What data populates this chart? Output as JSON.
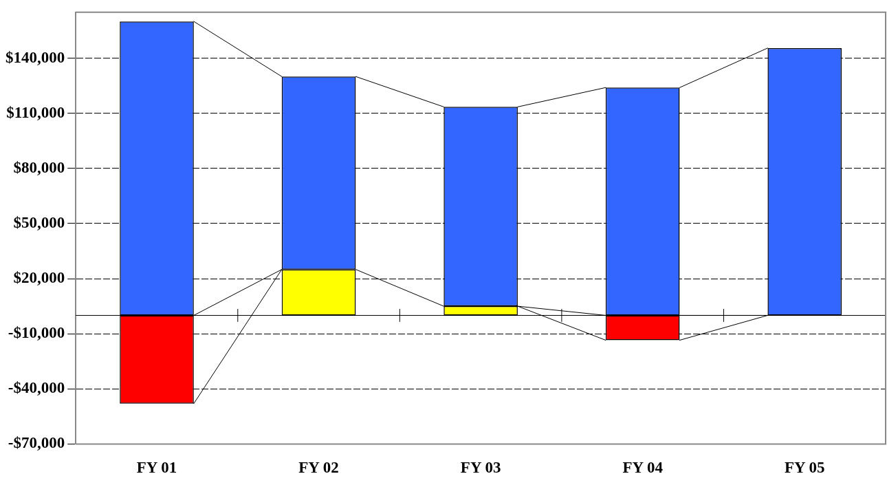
{
  "chart_data": {
    "type": "bar",
    "stacked": true,
    "categories": [
      "FY 01",
      "FY 02",
      "FY 03",
      "FY 04",
      "FY 05"
    ],
    "series": [
      {
        "colors": [
          "#ff0000",
          "#ffff00",
          "#ffff00",
          "#ff0000",
          "#ff0000"
        ],
        "values": [
          -48000,
          25000,
          5000,
          -13500,
          0
        ]
      },
      {
        "color": "#3366ff",
        "values": [
          160000,
          105000,
          108500,
          124000,
          145500
        ]
      }
    ],
    "ylim": [
      -70000,
      165000
    ],
    "yticks": [
      {
        "value": -70000,
        "label": "-$70,000"
      },
      {
        "value": -40000,
        "label": "-$40,000"
      },
      {
        "value": -10000,
        "label": "-$10,000"
      },
      {
        "value": 20000,
        "label": "$20,000"
      },
      {
        "value": 50000,
        "label": "$50,000"
      },
      {
        "value": 80000,
        "label": "$80,000"
      },
      {
        "value": 110000,
        "label": "$110,000"
      },
      {
        "value": 140000,
        "label": "$140,000"
      }
    ],
    "grid": "y",
    "legend": false
  }
}
